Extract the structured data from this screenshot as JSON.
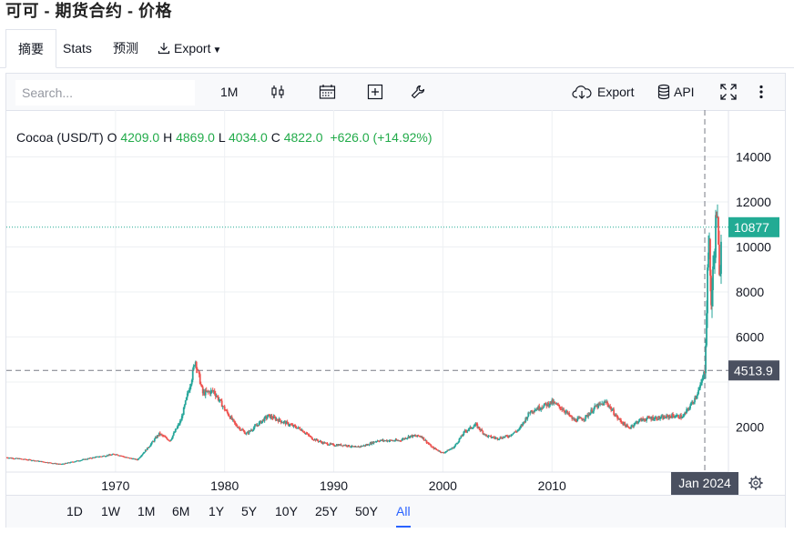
{
  "page": {
    "title": "可可 - 期货合约 - 价格"
  },
  "tabs": [
    {
      "label": "摘要",
      "active": true
    },
    {
      "label": "Stats"
    },
    {
      "label": "预测"
    },
    {
      "label": "Export"
    }
  ],
  "toolbar": {
    "search_placeholder": "Search...",
    "interval": "1M",
    "export_label": "Export",
    "api_label": "API",
    "icons": [
      "candlestick-icon",
      "calendar-icon",
      "plus-square-icon",
      "wrench-icon",
      "cloud-download-icon",
      "database-icon",
      "fullscreen-icon",
      "more-vertical-icon"
    ]
  },
  "legend": {
    "symbol": "Cocoa (USD/T)",
    "o_label": "O",
    "o": "4209.0",
    "h_label": "H",
    "h": "4869.0",
    "l_label": "L",
    "l": "4034.0",
    "c_label": "C",
    "c": "4822.0",
    "change": "+626.0 (+14.92%)"
  },
  "colors": {
    "up": "#26a69a",
    "down": "#ef5350",
    "last_price": "#22ab94",
    "crosshair_label": "#4a5060",
    "active_range": "#2962ff"
  },
  "chart_data": {
    "type": "candlestick",
    "title": "",
    "y_ticks": [
      "14000",
      "12000",
      "10000",
      "8000",
      "6000",
      "2000"
    ],
    "x_ticks": [
      "1970",
      "1980",
      "1990",
      "2000",
      "2010"
    ],
    "ylim": [
      0,
      14500
    ],
    "xlim": [
      1960.0,
      2025.5
    ],
    "last_price_label": "10877",
    "last_price": 10877,
    "crosshair_price_label": "4513.9",
    "crosshair_price": 4513.9,
    "crosshair_date_label": "Jan 2024",
    "crosshair_date": 2024.0,
    "series_keypoints": [
      [
        1960.0,
        650
      ],
      [
        1962,
        550
      ],
      [
        1965,
        350
      ],
      [
        1966,
        450
      ],
      [
        1968,
        650
      ],
      [
        1970,
        800
      ],
      [
        1971,
        650
      ],
      [
        1972,
        550
      ],
      [
        1973,
        1100
      ],
      [
        1974,
        1700
      ],
      [
        1975,
        1400
      ],
      [
        1976,
        2300
      ],
      [
        1977,
        4200
      ],
      [
        1977.3,
        5000
      ],
      [
        1978,
        3500
      ],
      [
        1979,
        3600
      ],
      [
        1980,
        2800
      ],
      [
        1981,
        2100
      ],
      [
        1982,
        1700
      ],
      [
        1983,
        2100
      ],
      [
        1984,
        2500
      ],
      [
        1985,
        2300
      ],
      [
        1986,
        2100
      ],
      [
        1987,
        1900
      ],
      [
        1988,
        1500
      ],
      [
        1989,
        1300
      ],
      [
        1990,
        1200
      ],
      [
        1991,
        1200
      ],
      [
        1992,
        1100
      ],
      [
        1993,
        1200
      ],
      [
        1994,
        1400
      ],
      [
        1995,
        1400
      ],
      [
        1996,
        1400
      ],
      [
        1997,
        1600
      ],
      [
        1998,
        1600
      ],
      [
        1999,
        1100
      ],
      [
        2000,
        850
      ],
      [
        2001,
        1100
      ],
      [
        2002,
        1800
      ],
      [
        2003,
        2100
      ],
      [
        2004,
        1600
      ],
      [
        2005,
        1500
      ],
      [
        2006,
        1600
      ],
      [
        2007,
        1900
      ],
      [
        2008,
        2700
      ],
      [
        2009,
        2900
      ],
      [
        2010,
        3100
      ],
      [
        2011,
        2800
      ],
      [
        2012,
        2300
      ],
      [
        2013,
        2400
      ],
      [
        2014,
        2900
      ],
      [
        2015,
        3100
      ],
      [
        2016,
        2400
      ],
      [
        2017,
        1950
      ],
      [
        2018,
        2300
      ],
      [
        2019,
        2400
      ],
      [
        2020,
        2400
      ],
      [
        2021,
        2500
      ],
      [
        2022,
        2450
      ],
      [
        2023,
        3200
      ],
      [
        2023.6,
        3800
      ],
      [
        2024.0,
        4514
      ],
      [
        2024.2,
        8000
      ],
      [
        2024.35,
        10500
      ],
      [
        2024.6,
        7500
      ],
      [
        2024.9,
        10000
      ],
      [
        2025.1,
        11800
      ],
      [
        2025.35,
        8200
      ],
      [
        2025.5,
        10877
      ]
    ]
  },
  "ranges": {
    "items": [
      "1D",
      "1W",
      "1M",
      "6M",
      "1Y",
      "5Y",
      "10Y",
      "25Y",
      "50Y",
      "All"
    ],
    "active": "All"
  }
}
